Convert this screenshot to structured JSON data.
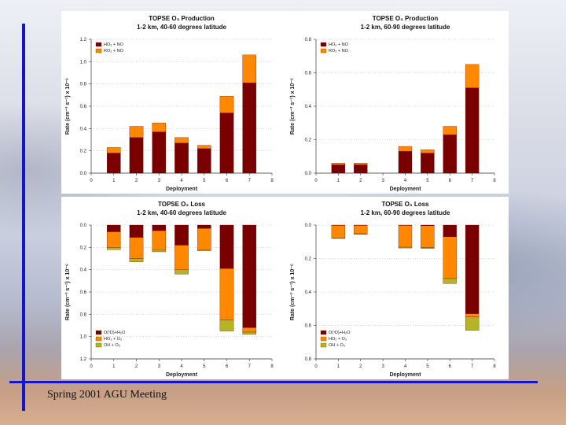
{
  "footer": {
    "text": "Spring 2001 AGU Meeting"
  },
  "colors": {
    "dark": "#7a0000",
    "orange": "#ff8800",
    "olive": "#b4b424",
    "line": "#1414c8"
  },
  "chart_data": [
    {
      "type": "bar",
      "title": "TOPSE O₃ Production",
      "subtitle": "1-2 km, 40-60 degrees latitude",
      "xlabel": "Deployment",
      "ylabel": "Rate (cm⁻³ s⁻¹) x 10⁻⁶",
      "xlim": [
        0,
        8
      ],
      "ylim": [
        0,
        1.2
      ],
      "xticks": [
        "0",
        "1",
        "2",
        "3",
        "4",
        "5",
        "6",
        "7",
        "8"
      ],
      "yticks": [
        "0.0",
        "0.2",
        "0.4",
        "0.6",
        "0.8",
        "1.0",
        "1.2"
      ],
      "x": [
        1,
        2,
        3,
        4,
        5,
        6,
        7
      ],
      "series": [
        {
          "name": "HO₂ + NO",
          "values": [
            0.18,
            0.32,
            0.37,
            0.27,
            0.22,
            0.54,
            0.81
          ]
        },
        {
          "name": "RO₂ + NO",
          "values": [
            0.05,
            0.1,
            0.08,
            0.05,
            0.03,
            0.15,
            0.25
          ]
        }
      ],
      "legend": "top-left"
    },
    {
      "type": "bar",
      "title": "TOPSE O₃ Production",
      "subtitle": "1-2 km, 60-90 degrees latitude",
      "xlabel": "Deployment",
      "ylabel": "Rate (cm⁻³ s⁻¹) x 10⁻⁶",
      "xlim": [
        0,
        8
      ],
      "ylim": [
        0,
        0.8
      ],
      "xticks": [
        "0",
        "1",
        "2",
        "3",
        "4",
        "5",
        "6",
        "7",
        "8"
      ],
      "yticks": [
        "0.0",
        "0.2",
        "0.4",
        "0.6",
        "0.8"
      ],
      "x": [
        1,
        2,
        3,
        4,
        5,
        6,
        7
      ],
      "series": [
        {
          "name": "HO₂ + NO",
          "values": [
            0.05,
            0.05,
            0,
            0.13,
            0.12,
            0.23,
            0.51
          ]
        },
        {
          "name": "RO₂ + NO",
          "values": [
            0.01,
            0.01,
            0,
            0.03,
            0.02,
            0.05,
            0.14
          ]
        }
      ],
      "legend": "top-left"
    },
    {
      "type": "bar",
      "title": "TOPSE O₃ Loss",
      "subtitle": "1-2 km, 40-60 degrees latitude",
      "xlabel": "Deployment",
      "ylabel": "Rate (cm⁻³ s⁻¹) x 10⁻⁶",
      "xlim": [
        0,
        8
      ],
      "ylim": [
        1.2,
        0
      ],
      "inverted": true,
      "xticks": [
        "0",
        "1",
        "2",
        "3",
        "4",
        "5",
        "6",
        "7",
        "8"
      ],
      "yticks": [
        "0.0",
        "0.2",
        "0.4",
        "0.6",
        "0.8",
        "1.0",
        "1.2"
      ],
      "x": [
        1,
        2,
        3,
        4,
        5,
        6,
        7
      ],
      "series": [
        {
          "name": "O(¹D)+H₂O",
          "values": [
            0.06,
            0.11,
            0.05,
            0.18,
            0.03,
            0.39,
            0.92
          ]
        },
        {
          "name": "HO₂ + O₃",
          "values": [
            0.14,
            0.19,
            0.17,
            0.22,
            0.19,
            0.46,
            0.04
          ]
        },
        {
          "name": "OH + O₃",
          "values": [
            0.02,
            0.03,
            0.02,
            0.04,
            0.01,
            0.1,
            0.02
          ]
        }
      ],
      "legend": "bottom-left"
    },
    {
      "type": "bar",
      "title": "TOPSE O₃ Loss",
      "subtitle": "1-2 km, 60-90 degrees latitude",
      "xlabel": "Deployment",
      "ylabel": "Rate (cm⁻³ s⁻¹) x 10⁻⁶",
      "xlim": [
        0,
        8
      ],
      "ylim": [
        0.8,
        0
      ],
      "inverted": true,
      "xticks": [
        "0",
        "1",
        "2",
        "3",
        "4",
        "5",
        "6",
        "7",
        "8"
      ],
      "yticks": [
        "0.0",
        "0.2",
        "0.4",
        "0.6",
        "0.8"
      ],
      "x": [
        1,
        2,
        3,
        4,
        5,
        6,
        7
      ],
      "series": [
        {
          "name": "O(¹D)+H₂O",
          "values": [
            0.002,
            0.002,
            0,
            0.002,
            0.004,
            0.07,
            0.53
          ]
        },
        {
          "name": "HO₂ + O₃",
          "values": [
            0.075,
            0.05,
            0,
            0.13,
            0.13,
            0.25,
            0.02
          ]
        },
        {
          "name": "OH + O₃",
          "values": [
            0.003,
            0.003,
            0,
            0.005,
            0.006,
            0.03,
            0.08
          ]
        }
      ],
      "legend": "bottom-left"
    }
  ]
}
